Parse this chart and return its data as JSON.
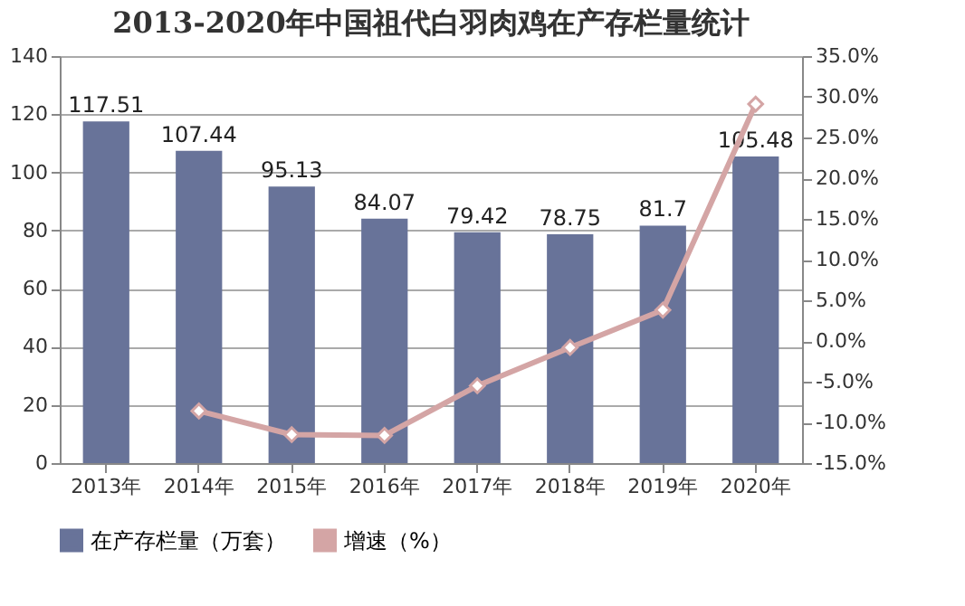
{
  "chart_data": {
    "type": "bar",
    "title": "2013-2020年中国祖代白羽肉鸡在产存栏量统计",
    "categories": [
      "2013年",
      "2014年",
      "2015年",
      "2016年",
      "2017年",
      "2018年",
      "2019年",
      "2020年"
    ],
    "series": [
      {
        "name": "在产存栏量（万套）",
        "color": "#687399",
        "values": [
          117.51,
          107.44,
          95.13,
          84.07,
          79.42,
          78.75,
          81.7,
          105.48
        ],
        "value_labels": [
          "117.51",
          "107.44",
          "95.13",
          "84.07",
          "79.42",
          "78.75",
          "81.7",
          "105.48"
        ]
      },
      {
        "name": "增速（%）",
        "type": "line",
        "axis": "y2",
        "color": "#d4a5a5",
        "marker": "diamond",
        "values": [
          null,
          -8.6,
          -11.5,
          -11.6,
          -5.5,
          -0.8,
          3.8,
          29.1
        ]
      }
    ],
    "ylim": [
      0,
      140
    ],
    "yticks": [
      0,
      20,
      40,
      60,
      80,
      100,
      120,
      140
    ],
    "y2lim": [
      -15,
      35
    ],
    "y2ticks": [
      {
        "value": -15,
        "label": "-15.0%"
      },
      {
        "value": -10,
        "label": "-10.0%"
      },
      {
        "value": -5,
        "label": "-5.0%"
      },
      {
        "value": 0,
        "label": "0.0%"
      },
      {
        "value": 5,
        "label": "5.0%"
      },
      {
        "value": 10,
        "label": "10.0%"
      },
      {
        "value": 15,
        "label": "15.0%"
      },
      {
        "value": 20,
        "label": "20.0%"
      },
      {
        "value": 25,
        "label": "25.0%"
      },
      {
        "value": 30,
        "label": "30.0%"
      },
      {
        "value": 35,
        "label": "35.0%"
      }
    ],
    "grid": "y",
    "legend": "bottom"
  }
}
